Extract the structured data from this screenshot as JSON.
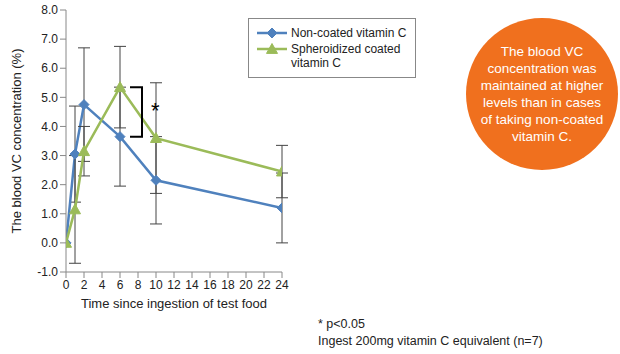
{
  "chart_data": {
    "type": "line",
    "x_label": "Time since ingestion of test food",
    "y_label": "The blood VC concentration (%)",
    "x": [
      0,
      1,
      2,
      6,
      10,
      24
    ],
    "xlim": [
      0,
      24
    ],
    "xticks": [
      0,
      2,
      4,
      6,
      8,
      10,
      12,
      14,
      16,
      18,
      20,
      22,
      24
    ],
    "ylim": [
      -1,
      8
    ],
    "yticks": [
      {
        "value": -1,
        "label": "-1.0"
      },
      {
        "value": 0,
        "label": "0.0"
      },
      {
        "value": 1,
        "label": "1.0"
      },
      {
        "value": 2,
        "label": "2.0"
      },
      {
        "value": 3,
        "label": "3.0"
      },
      {
        "value": 4,
        "label": "4.0"
      },
      {
        "value": 5,
        "label": "5.0"
      },
      {
        "value": 6,
        "label": "6.0"
      },
      {
        "value": 7,
        "label": "7.0"
      },
      {
        "value": 8,
        "label": "8.0"
      }
    ],
    "grid": false,
    "legend": "upper right",
    "series": [
      {
        "name": "Non-coated vitamin C",
        "color": "#4f81bd",
        "marker": "diamond",
        "values": [
          0,
          3.05,
          4.75,
          3.65,
          2.15,
          1.2
        ],
        "errors": [
          0,
          1.65,
          1.95,
          1.7,
          1.5,
          1.2
        ]
      },
      {
        "name": "Spheroidized coated vitamin C",
        "color": "#9bbb59",
        "marker": "triangle",
        "values": [
          0,
          1.15,
          3.15,
          5.35,
          3.6,
          2.45
        ],
        "errors": [
          0,
          1.85,
          0.85,
          1.4,
          1.9,
          0.9
        ]
      }
    ],
    "significance": {
      "x": 6,
      "label": "*"
    },
    "annotations": [
      "The blood VC concentration was maintained at higher levels than in cases of taking non-coated vitamin C.",
      "* p<0.05",
      "Ingest 200mg vitamin C equivalent (n=7)"
    ]
  }
}
